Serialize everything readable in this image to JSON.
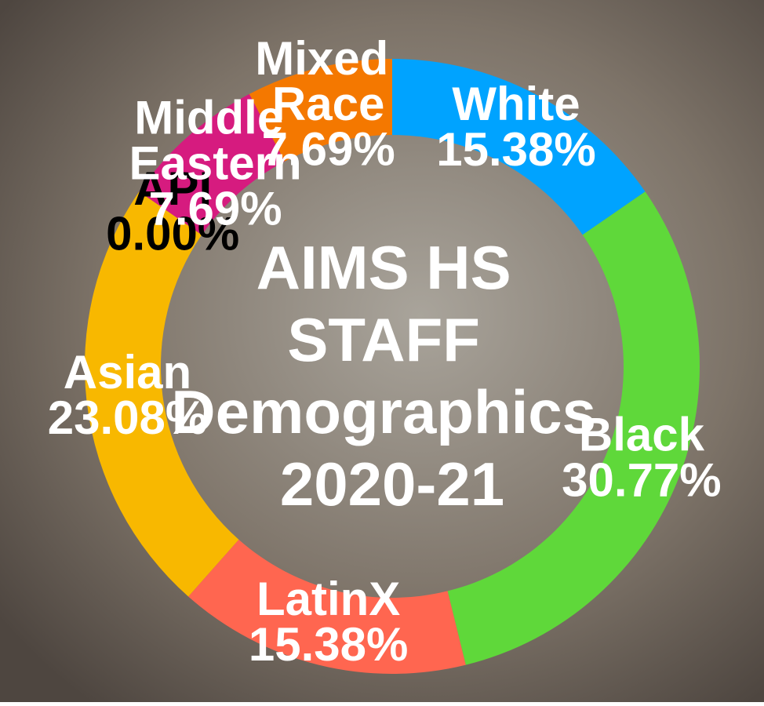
{
  "chart_data": {
    "type": "donut",
    "title": "AIMS HS STAFF Demographics 2020-21",
    "categories": [
      "White",
      "Black",
      "LatinX",
      "Asian",
      "API",
      "Middle Eastern",
      "Mixed Race"
    ],
    "values": [
      15.38,
      30.77,
      15.38,
      23.08,
      0.0,
      7.69,
      7.69
    ],
    "value_labels": [
      "15.38%",
      "30.77%",
      "15.38%",
      "23.08%",
      "0.00%",
      "7.69%",
      "7.69%"
    ],
    "colors": [
      "#00a3ff",
      "#5fd83a",
      "#ff6650",
      "#f8b800",
      "#111111",
      "#d61b7f",
      "#f47800"
    ]
  }
}
